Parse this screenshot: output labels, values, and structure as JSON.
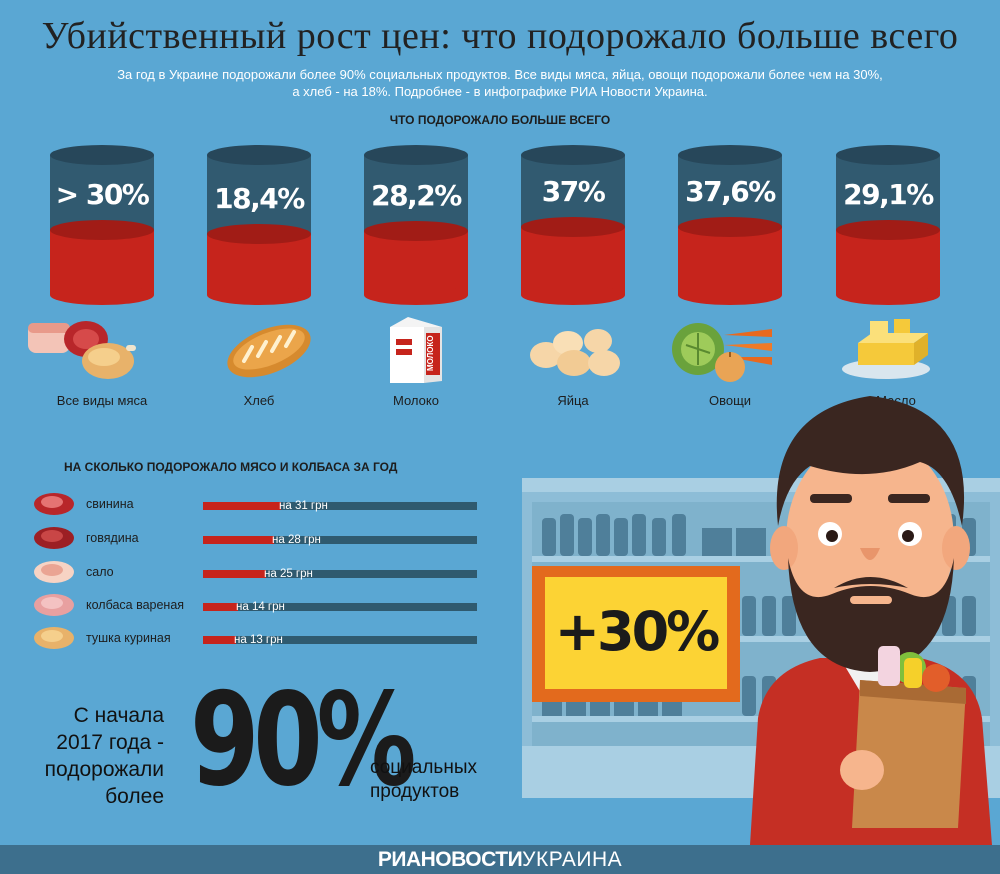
{
  "title": "Убийственный рост цен: что подорожало больше всего",
  "subtitle_line1": "За год в Украине подорожали более 90% социальных продуктов. Все виды мяса, яйца, овощи подорожали более чем на 30%,",
  "subtitle_line2": "а хлеб - на 18%. Подробнее - в инфографике РИА Новости Украина.",
  "chart_data": [
    {
      "type": "bar",
      "title": "ЧТО ПОДОРОЖАЛО БОЛЬШЕ ВСЕГО",
      "categories": [
        "Все виды мяса",
        "Хлеб",
        "Молоко",
        "Яйца",
        "Овощи",
        "Масло"
      ],
      "value_labels": [
        "> 30%",
        "18,4%",
        "28,2%",
        "37%",
        "37,6%",
        "29,1%"
      ],
      "values": [
        30,
        18.4,
        28.2,
        37,
        37.6,
        29.1
      ],
      "unit": "%"
    },
    {
      "type": "bar",
      "title": "НА СКОЛЬКО ПОДОРОЖАЛО МЯСО И КОЛБАСА ЗА ГОД",
      "categories": [
        "свинина",
        "говядина",
        "сало",
        "колбаса вареная",
        "тушка куриная"
      ],
      "values": [
        31,
        28,
        25,
        14,
        13
      ],
      "value_labels": [
        "на 31 грн",
        "на 28 грн",
        "на 25 грн",
        "на 14 грн",
        "на 13 грн"
      ],
      "unit": "грн",
      "orientation": "horizontal"
    }
  ],
  "milk_pack_label": "МОЛОКО",
  "since_text": [
    "С начала",
    "2017 года -",
    "подорожали",
    "более"
  ],
  "big_value": "90%",
  "social_text": [
    "социальных",
    "продуктов"
  ],
  "promo": "+30%",
  "brand_bold": "РИАНОВОСТИ",
  "brand_light": "УКРАИНА",
  "colors": {
    "background": "#5aa7d3",
    "bar_fill": "#c6241c",
    "bar_empty": "#315a70",
    "promo_bg": "#fcd334",
    "promo_border": "#e36a1d",
    "footer": "#3d6f8d"
  }
}
